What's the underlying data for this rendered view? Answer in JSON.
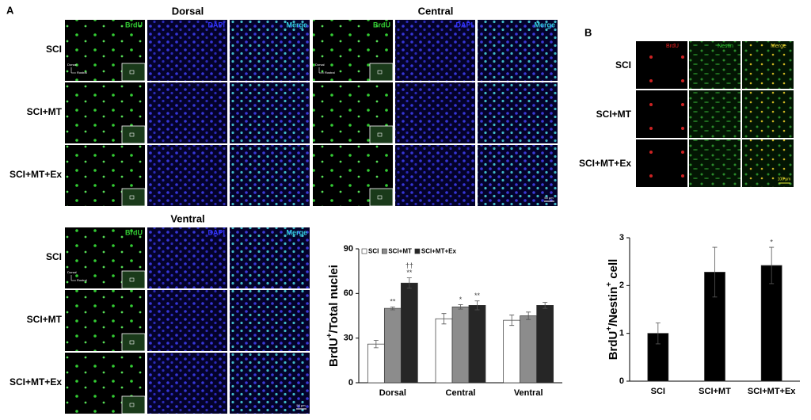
{
  "panel_a": {
    "label": "A",
    "channels": [
      "BrdU",
      "DAPI",
      "Merge"
    ],
    "groups": [
      "SCI",
      "SCI+MT",
      "SCI+MT+Ex"
    ],
    "regions": [
      "Dorsal",
      "Central",
      "Ventral"
    ],
    "orientation": [
      "Dorsal",
      "Rostral"
    ],
    "scale_bar": "50 μm"
  },
  "panel_b": {
    "label": "B",
    "channels": [
      "BrdU",
      "Nestin",
      "Merge"
    ],
    "groups": [
      "SCI",
      "SCI+MT",
      "SCI+MT+Ex"
    ],
    "scale_bar": "100 μm"
  },
  "chart_data": [
    {
      "type": "bar",
      "ylabel": [
        "BrdU",
        "+",
        "/Total nuclei"
      ],
      "categories": [
        "Dorsal",
        "Central",
        "Ventral"
      ],
      "ylim": [
        0,
        90
      ],
      "yticks": [
        0,
        30,
        60,
        90
      ],
      "legend": "top",
      "series": [
        {
          "name": "SCI",
          "color": "#ffffff",
          "values": [
            26,
            43,
            42
          ],
          "errors": [
            2.5,
            3.5,
            3.5
          ],
          "significance": [
            null,
            null,
            null
          ]
        },
        {
          "name": "SCI+MT",
          "color": "#8c8c8c",
          "values": [
            50,
            51,
            45
          ],
          "errors": [
            1,
            1.5,
            2.5
          ],
          "significance": [
            [
              "**"
            ],
            [
              "*"
            ],
            null
          ]
        },
        {
          "name": "SCI+MT+Ex",
          "color": "#262626",
          "values": [
            67,
            52,
            52
          ],
          "errors": [
            3.5,
            3,
            2
          ],
          "significance": [
            [
              "††",
              "**"
            ],
            [
              "**"
            ],
            null
          ]
        }
      ]
    },
    {
      "type": "bar",
      "ylabel": [
        "BrdU",
        "+",
        "/Nestin",
        "+",
        " cell"
      ],
      "categories": [
        "SCI",
        "SCI+MT",
        "SCI+MT+Ex"
      ],
      "ylim": [
        0,
        3
      ],
      "yticks": [
        0,
        1,
        2,
        3
      ],
      "series": [
        {
          "color": "#000000",
          "values": [
            1.0,
            2.28,
            2.42
          ],
          "errors": [
            0.22,
            0.52,
            0.38
          ],
          "significance": [
            null,
            null,
            [
              "*"
            ]
          ]
        }
      ]
    }
  ]
}
